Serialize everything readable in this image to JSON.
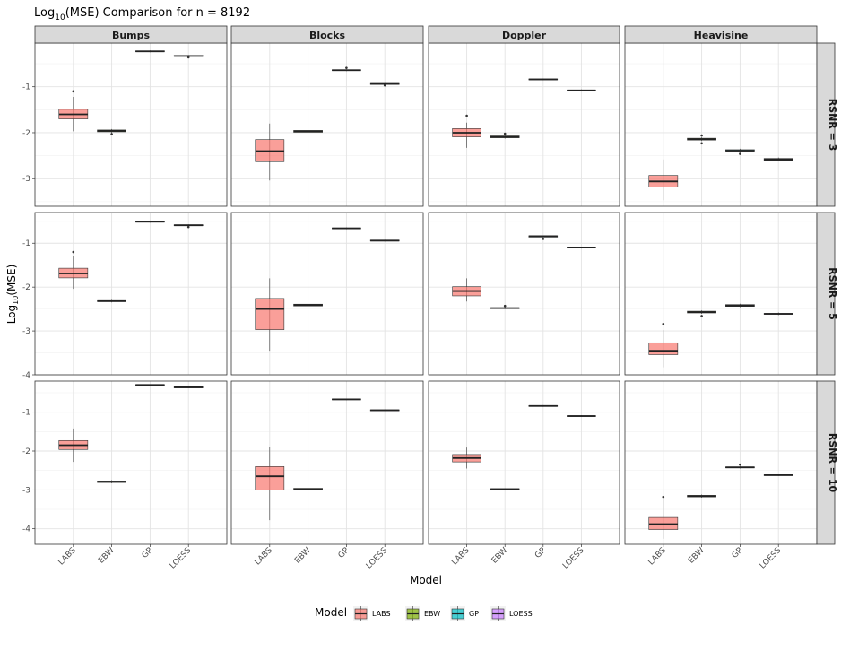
{
  "title_prefix": "Log",
  "title_sub": "10",
  "title_suffix": "(MSE) Comparison for n =  8192",
  "ylabel_prefix": "Log",
  "ylabel_sub": "10",
  "ylabel_suffix": "(MSE)",
  "caption": "",
  "colors": {
    "LABS": "#F8766D",
    "EBW": "#7CAE00",
    "GP": "#00BFC4",
    "LOESS": "#C77CFF"
  },
  "chart_data": {
    "type": "boxplot",
    "xlabel": "Model",
    "categories": [
      "LABS",
      "EBW",
      "GP",
      "LOESS"
    ],
    "legend": {
      "title": "Model",
      "entries": [
        "LABS",
        "EBW",
        "GP",
        "LOESS"
      ],
      "position": "bottom"
    },
    "facet_cols": [
      "Bumps",
      "Blocks",
      "Doppler",
      "Heavisine"
    ],
    "facet_rows": [
      "RSNR = 3",
      "RSNR = 5",
      "RSNR = 10"
    ],
    "y_ticks": [
      -4,
      -3,
      -2,
      -1
    ],
    "ylim_by_row": [
      [
        -3.6,
        -0.05
      ],
      [
        -4.0,
        -0.3
      ],
      [
        -4.4,
        -0.2
      ]
    ],
    "grid": true,
    "panels": [
      {
        "row": 0,
        "col": 0,
        "boxes": [
          {
            "model": "LABS",
            "min": -1.97,
            "q1": -1.7,
            "median": -1.6,
            "q3": -1.49,
            "max": -1.22,
            "outliers": [
              -1.1
            ]
          },
          {
            "model": "EBW",
            "min": -2.01,
            "q1": -1.98,
            "median": -1.96,
            "q3": -1.94,
            "max": -1.92,
            "outliers": [
              -2.03
            ]
          },
          {
            "model": "GP",
            "min": -0.25,
            "q1": -0.24,
            "median": -0.23,
            "q3": -0.22,
            "max": -0.21,
            "outliers": []
          },
          {
            "model": "LOESS",
            "min": -0.35,
            "q1": -0.34,
            "median": -0.33,
            "q3": -0.32,
            "max": -0.31,
            "outliers": [
              -0.36
            ]
          }
        ]
      },
      {
        "row": 0,
        "col": 1,
        "boxes": [
          {
            "model": "LABS",
            "min": -3.04,
            "q1": -2.63,
            "median": -2.4,
            "q3": -2.15,
            "max": -1.8,
            "outliers": []
          },
          {
            "model": "EBW",
            "min": -2.01,
            "q1": -1.99,
            "median": -1.97,
            "q3": -1.95,
            "max": -1.93,
            "outliers": []
          },
          {
            "model": "GP",
            "min": -0.66,
            "q1": -0.65,
            "median": -0.64,
            "q3": -0.63,
            "max": -0.62,
            "outliers": [
              -0.59
            ]
          },
          {
            "model": "LOESS",
            "min": -0.96,
            "q1": -0.95,
            "median": -0.94,
            "q3": -0.93,
            "max": -0.92,
            "outliers": [
              -0.97
            ]
          }
        ]
      },
      {
        "row": 0,
        "col": 2,
        "boxes": [
          {
            "model": "LABS",
            "min": -2.33,
            "q1": -2.09,
            "median": -2.0,
            "q3": -1.91,
            "max": -1.78,
            "outliers": [
              -1.63
            ]
          },
          {
            "model": "EBW",
            "min": -2.13,
            "q1": -2.11,
            "median": -2.09,
            "q3": -2.07,
            "max": -2.05,
            "outliers": [
              -2.02
            ]
          },
          {
            "model": "GP",
            "min": -0.86,
            "q1": -0.85,
            "median": -0.84,
            "q3": -0.83,
            "max": -0.82,
            "outliers": []
          },
          {
            "model": "LOESS",
            "min": -1.1,
            "q1": -1.09,
            "median": -1.08,
            "q3": -1.07,
            "max": -1.06,
            "outliers": []
          }
        ]
      },
      {
        "row": 0,
        "col": 3,
        "boxes": [
          {
            "model": "LABS",
            "min": -3.47,
            "q1": -3.18,
            "median": -3.06,
            "q3": -2.93,
            "max": -2.58,
            "outliers": []
          },
          {
            "model": "EBW",
            "min": -2.18,
            "q1": -2.16,
            "median": -2.14,
            "q3": -2.12,
            "max": -2.1,
            "outliers": [
              -2.06,
              -2.23
            ]
          },
          {
            "model": "GP",
            "min": -2.42,
            "q1": -2.4,
            "median": -2.39,
            "q3": -2.37,
            "max": -2.35,
            "outliers": [
              -2.46
            ]
          },
          {
            "model": "LOESS",
            "min": -2.62,
            "q1": -2.6,
            "median": -2.58,
            "q3": -2.56,
            "max": -2.54,
            "outliers": []
          }
        ]
      },
      {
        "row": 1,
        "col": 0,
        "boxes": [
          {
            "model": "LABS",
            "min": -2.04,
            "q1": -1.79,
            "median": -1.69,
            "q3": -1.57,
            "max": -1.3,
            "outliers": [
              -1.2
            ]
          },
          {
            "model": "EBW",
            "min": -2.35,
            "q1": -2.33,
            "median": -2.32,
            "q3": -2.31,
            "max": -2.29,
            "outliers": []
          },
          {
            "model": "GP",
            "min": -0.53,
            "q1": -0.52,
            "median": -0.51,
            "q3": -0.5,
            "max": -0.49,
            "outliers": []
          },
          {
            "model": "LOESS",
            "min": -0.61,
            "q1": -0.6,
            "median": -0.59,
            "q3": -0.58,
            "max": -0.57,
            "outliers": [
              -0.63
            ]
          }
        ]
      },
      {
        "row": 1,
        "col": 1,
        "boxes": [
          {
            "model": "LABS",
            "min": -3.45,
            "q1": -2.97,
            "median": -2.5,
            "q3": -2.26,
            "max": -1.8,
            "outliers": []
          },
          {
            "model": "EBW",
            "min": -2.45,
            "q1": -2.43,
            "median": -2.41,
            "q3": -2.39,
            "max": -2.37,
            "outliers": []
          },
          {
            "model": "GP",
            "min": -0.68,
            "q1": -0.67,
            "median": -0.66,
            "q3": -0.65,
            "max": -0.64,
            "outliers": []
          },
          {
            "model": "LOESS",
            "min": -0.96,
            "q1": -0.95,
            "median": -0.94,
            "q3": -0.93,
            "max": -0.92,
            "outliers": []
          }
        ]
      },
      {
        "row": 1,
        "col": 2,
        "boxes": [
          {
            "model": "LABS",
            "min": -2.33,
            "q1": -2.2,
            "median": -2.09,
            "q3": -1.99,
            "max": -1.8,
            "outliers": []
          },
          {
            "model": "EBW",
            "min": -2.5,
            "q1": -2.49,
            "median": -2.48,
            "q3": -2.47,
            "max": -2.46,
            "outliers": [
              -2.43
            ]
          },
          {
            "model": "GP",
            "min": -0.87,
            "q1": -0.86,
            "median": -0.84,
            "q3": -0.83,
            "max": -0.82,
            "outliers": [
              -0.9
            ]
          },
          {
            "model": "LOESS",
            "min": -1.12,
            "q1": -1.11,
            "median": -1.1,
            "q3": -1.09,
            "max": -1.08,
            "outliers": []
          }
        ]
      },
      {
        "row": 1,
        "col": 3,
        "boxes": [
          {
            "model": "LABS",
            "min": -3.83,
            "q1": -3.54,
            "median": -3.45,
            "q3": -3.27,
            "max": -2.98,
            "outliers": [
              -2.84
            ]
          },
          {
            "model": "EBW",
            "min": -2.61,
            "q1": -2.59,
            "median": -2.57,
            "q3": -2.55,
            "max": -2.53,
            "outliers": [
              -2.66
            ]
          },
          {
            "model": "GP",
            "min": -2.46,
            "q1": -2.44,
            "median": -2.42,
            "q3": -2.4,
            "max": -2.38,
            "outliers": []
          },
          {
            "model": "LOESS",
            "min": -2.64,
            "q1": -2.62,
            "median": -2.61,
            "q3": -2.6,
            "max": -2.58,
            "outliers": []
          }
        ]
      },
      {
        "row": 2,
        "col": 0,
        "boxes": [
          {
            "model": "LABS",
            "min": -2.28,
            "q1": -1.96,
            "median": -1.85,
            "q3": -1.73,
            "max": -1.42,
            "outliers": []
          },
          {
            "model": "EBW",
            "min": -2.83,
            "q1": -2.81,
            "median": -2.79,
            "q3": -2.77,
            "max": -2.75,
            "outliers": []
          },
          {
            "model": "GP",
            "min": -0.32,
            "q1": -0.31,
            "median": -0.3,
            "q3": -0.29,
            "max": -0.28,
            "outliers": []
          },
          {
            "model": "LOESS",
            "min": -0.38,
            "q1": -0.37,
            "median": -0.36,
            "q3": -0.35,
            "max": -0.34,
            "outliers": []
          }
        ]
      },
      {
        "row": 2,
        "col": 1,
        "boxes": [
          {
            "model": "LABS",
            "min": -3.78,
            "q1": -3.0,
            "median": -2.65,
            "q3": -2.4,
            "max": -1.9,
            "outliers": []
          },
          {
            "model": "EBW",
            "min": -3.03,
            "q1": -3.0,
            "median": -2.98,
            "q3": -2.96,
            "max": -2.94,
            "outliers": []
          },
          {
            "model": "GP",
            "min": -0.69,
            "q1": -0.68,
            "median": -0.67,
            "q3": -0.66,
            "max": -0.65,
            "outliers": []
          },
          {
            "model": "LOESS",
            "min": -0.97,
            "q1": -0.96,
            "median": -0.95,
            "q3": -0.94,
            "max": -0.93,
            "outliers": []
          }
        ]
      },
      {
        "row": 2,
        "col": 2,
        "boxes": [
          {
            "model": "LABS",
            "min": -2.45,
            "q1": -2.28,
            "median": -2.18,
            "q3": -2.09,
            "max": -1.91,
            "outliers": []
          },
          {
            "model": "EBW",
            "min": -3.0,
            "q1": -2.99,
            "median": -2.98,
            "q3": -2.97,
            "max": -2.96,
            "outliers": []
          },
          {
            "model": "GP",
            "min": -0.86,
            "q1": -0.85,
            "median": -0.84,
            "q3": -0.83,
            "max": -0.82,
            "outliers": []
          },
          {
            "model": "LOESS",
            "min": -1.12,
            "q1": -1.11,
            "median": -1.1,
            "q3": -1.09,
            "max": -1.08,
            "outliers": []
          }
        ]
      },
      {
        "row": 2,
        "col": 3,
        "boxes": [
          {
            "model": "LABS",
            "min": -4.26,
            "q1": -4.02,
            "median": -3.88,
            "q3": -3.71,
            "max": -3.25,
            "outliers": [
              -3.18
            ]
          },
          {
            "model": "EBW",
            "min": -3.2,
            "q1": -3.18,
            "median": -3.16,
            "q3": -3.14,
            "max": -3.12,
            "outliers": []
          },
          {
            "model": "GP",
            "min": -2.45,
            "q1": -2.43,
            "median": -2.42,
            "q3": -2.41,
            "max": -2.39,
            "outliers": [
              -2.35
            ]
          },
          {
            "model": "LOESS",
            "min": -2.64,
            "q1": -2.63,
            "median": -2.62,
            "q3": -2.61,
            "max": -2.6,
            "outliers": []
          }
        ]
      }
    ]
  }
}
